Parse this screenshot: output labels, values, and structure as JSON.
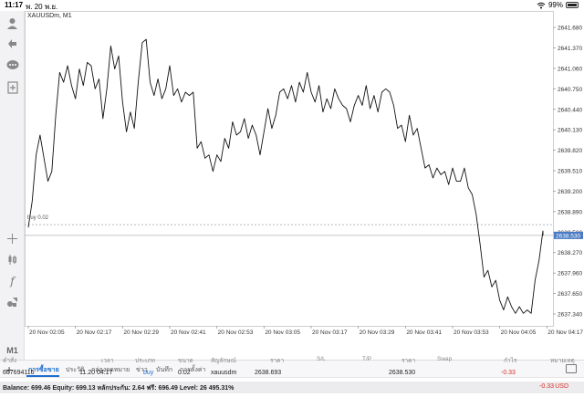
{
  "status_bar": {
    "time": "11:17",
    "date": "พ. 20 พ.ย.",
    "battery": "99%"
  },
  "chart": {
    "symbol_label": "XAUUSDm, M1",
    "level_label": "buy 0.02",
    "current_price_label": "2638.530"
  },
  "toolbar": {
    "timeframe": "M1",
    "tools": [
      "profile-icon",
      "trade-icon",
      "chat-icon",
      "add-chart-icon",
      "crosshair-icon",
      "candles-icon",
      "function-icon",
      "objects-icon"
    ]
  },
  "tabs": [
    "การซื้อขาย",
    "ประวัติ",
    "กล่องจดหมาย",
    "ข่าว",
    "บันทึก",
    "การตั้งค่า"
  ],
  "table": {
    "headers": [
      "คำสั่ง",
      "เวลา",
      "ประเภท",
      "ขนาด",
      "สัญลักษณ์",
      "ราคา",
      "S/L",
      "T/P",
      "ราคา",
      "Swap",
      "กำไร",
      "หมายเหตุ"
    ],
    "rows": [
      {
        "order": "667694116",
        "time": "11.20 04:17",
        "type": "buy",
        "size": "0.02",
        "symbol": "xauusdm",
        "price_open": "2638.693",
        "sl": "",
        "tp": "",
        "price_current": "2638.530",
        "swap": "",
        "profit": "-0.33",
        "comment": ""
      }
    ]
  },
  "balance_bar": {
    "text": "Balance: 699.46 Equity: 699.13 หลักประกัน: 2.64 ฟรี: 696.49 Level: 26 495.31%",
    "profit": "-0.33",
    "currency": "USD"
  },
  "chart_data": {
    "type": "line",
    "symbol": "XAUUSDm",
    "timeframe": "M1",
    "x_ticks": [
      "20 Nov 02:05",
      "20 Nov 02:17",
      "20 Nov 02:29",
      "20 Nov 02:41",
      "20 Nov 02:53",
      "20 Nov 03:05",
      "20 Nov 03:17",
      "20 Nov 03:29",
      "20 Nov 03:41",
      "20 Nov 03:53",
      "20 Nov 04:05",
      "20 Nov 04:17"
    ],
    "y_ticks": [
      2641.68,
      2641.37,
      2641.06,
      2640.75,
      2640.44,
      2640.13,
      2639.82,
      2639.51,
      2639.2,
      2638.89,
      2638.58,
      2638.27,
      2637.96,
      2637.65,
      2637.34
    ],
    "y_tick_labels": [
      "2641.680",
      "2641.370",
      "2641.060",
      "2640.750",
      "2640.440",
      "2640.130",
      "2639.820",
      "2639.510",
      "2639.200",
      "2638.890",
      "2638.580",
      "2638.270",
      "2637.960",
      "2637.650",
      "2637.340"
    ],
    "ylim": [
      2637.16,
      2641.93
    ],
    "x_minutes": [
      0,
      131
    ],
    "x": [
      0,
      1,
      2,
      3,
      4,
      5,
      6,
      7,
      8,
      9,
      10,
      11,
      12,
      13,
      14,
      15,
      16,
      17,
      18,
      19,
      20,
      21,
      22,
      23,
      24,
      25,
      26,
      27,
      28,
      29,
      30,
      31,
      32,
      33,
      34,
      35,
      36,
      37,
      38,
      39,
      40,
      41,
      42,
      43,
      44,
      45,
      46,
      47,
      48,
      49,
      50,
      51,
      52,
      53,
      54,
      55,
      56,
      57,
      58,
      59,
      60,
      61,
      62,
      63,
      64,
      65,
      66,
      67,
      68,
      69,
      70,
      71,
      72,
      73,
      74,
      75,
      76,
      77,
      78,
      79,
      80,
      81,
      82,
      83,
      84,
      85,
      86,
      87,
      88,
      89,
      90,
      91,
      92,
      93,
      94,
      95,
      96,
      97,
      98,
      99,
      100,
      101,
      102,
      103,
      104,
      105,
      106,
      107,
      108,
      109,
      110,
      111,
      112,
      113,
      114,
      115,
      116,
      117,
      118,
      119,
      120,
      121,
      122,
      123,
      124,
      125,
      126,
      127,
      128,
      129,
      130,
      131
    ],
    "values": [
      2638.65,
      2639.05,
      2639.75,
      2640.05,
      2639.7,
      2639.35,
      2639.5,
      2640.35,
      2641.0,
      2640.85,
      2641.1,
      2640.8,
      2640.6,
      2641.05,
      2640.8,
      2641.15,
      2641.1,
      2640.75,
      2640.9,
      2640.3,
      2640.75,
      2641.4,
      2641.05,
      2641.25,
      2640.55,
      2640.1,
      2640.4,
      2640.15,
      2640.85,
      2641.45,
      2641.5,
      2640.85,
      2640.65,
      2640.9,
      2640.6,
      2640.75,
      2641.1,
      2640.65,
      2640.75,
      2640.55,
      2640.7,
      2640.65,
      2640.7,
      2639.85,
      2639.95,
      2639.7,
      2639.75,
      2639.5,
      2639.75,
      2639.65,
      2640.0,
      2639.85,
      2640.25,
      2640.05,
      2640.1,
      2640.3,
      2640.0,
      2640.2,
      2640.05,
      2639.75,
      2640.1,
      2640.45,
      2640.15,
      2640.35,
      2640.7,
      2640.75,
      2640.6,
      2640.8,
      2640.55,
      2640.85,
      2640.7,
      2641.0,
      2640.7,
      2640.55,
      2640.8,
      2640.4,
      2640.6,
      2640.45,
      2640.75,
      2640.6,
      2640.5,
      2640.45,
      2640.25,
      2640.5,
      2640.65,
      2640.5,
      2640.8,
      2640.45,
      2640.65,
      2640.4,
      2640.7,
      2640.75,
      2640.7,
      2640.5,
      2640.15,
      2640.2,
      2639.95,
      2640.35,
      2640.05,
      2640.15,
      2639.85,
      2639.55,
      2639.6,
      2639.4,
      2639.55,
      2639.45,
      2639.5,
      2639.3,
      2639.55,
      2639.35,
      2639.35,
      2639.55,
      2639.25,
      2639.15,
      2638.85,
      2638.4,
      2637.9,
      2638.0,
      2637.75,
      2637.85,
      2637.55,
      2637.4,
      2637.6,
      2637.45,
      2637.35,
      2637.45,
      2637.35,
      2637.4,
      2637.35,
      2637.85,
      2638.15,
      2638.6
    ]
  }
}
